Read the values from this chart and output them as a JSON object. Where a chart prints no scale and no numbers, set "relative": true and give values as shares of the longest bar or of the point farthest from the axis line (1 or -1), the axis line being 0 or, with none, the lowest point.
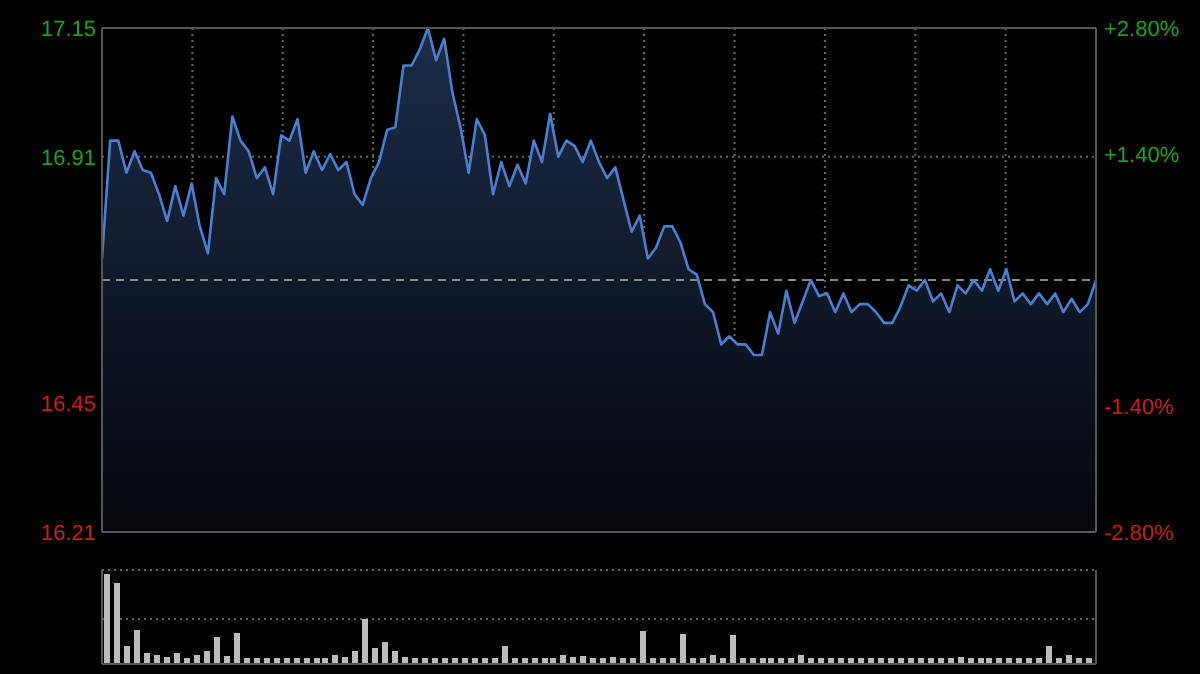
{
  "chart_data": [
    {
      "type": "area",
      "color": "#4a7fd0",
      "categories": [
        null,
        null,
        null,
        null,
        null,
        null,
        null,
        null,
        null,
        null,
        null,
        null,
        null,
        null,
        null,
        null,
        null,
        null,
        null,
        null,
        null,
        null,
        null,
        null,
        null,
        null,
        null,
        null,
        null,
        null,
        null,
        null,
        null,
        null,
        null,
        null,
        null,
        null,
        null,
        null,
        null,
        null,
        null,
        null,
        null,
        null,
        null,
        null,
        null,
        null,
        null,
        null,
        null,
        null,
        null,
        null,
        null,
        null,
        null,
        null,
        null,
        null,
        null,
        null,
        null,
        null,
        null,
        null,
        null,
        null,
        null,
        null,
        null,
        null,
        null,
        null,
        null,
        null,
        null,
        null,
        null,
        null,
        null,
        null,
        null,
        null,
        null,
        null,
        null,
        null,
        null,
        null,
        null,
        null,
        null,
        null,
        null,
        null,
        null,
        null,
        null,
        null,
        null,
        null,
        null,
        null,
        null,
        null,
        null,
        null,
        null,
        null,
        null,
        null,
        null,
        null,
        null,
        null,
        null,
        null,
        null,
        null,
        null
      ],
      "values": [
        16.72,
        16.94,
        16.94,
        16.88,
        16.92,
        16.885,
        16.88,
        16.84,
        16.79,
        16.855,
        16.8,
        16.86,
        16.78,
        16.73,
        16.87,
        16.84,
        16.985,
        16.94,
        16.92,
        16.87,
        16.89,
        16.84,
        16.95,
        16.94,
        16.98,
        16.88,
        16.92,
        16.885,
        16.915,
        16.885,
        16.9,
        16.84,
        16.82,
        16.87,
        16.9,
        16.96,
        16.965,
        17.08,
        17.08,
        17.11,
        17.15,
        17.09,
        17.13,
        17.03,
        16.965,
        16.88,
        16.98,
        16.95,
        16.84,
        16.9,
        16.855,
        16.895,
        16.86,
        16.94,
        16.9,
        16.99,
        16.91,
        16.94,
        16.93,
        16.9,
        16.94,
        16.9,
        16.87,
        16.89,
        16.83,
        16.77,
        16.8,
        16.72,
        16.74,
        16.78,
        16.78,
        16.75,
        16.7,
        16.69,
        16.635,
        16.62,
        16.56,
        16.575,
        16.56,
        16.56,
        16.54,
        16.54,
        16.62,
        16.58,
        16.66,
        16.6,
        16.64,
        16.68,
        16.65,
        16.655,
        16.62,
        16.655,
        16.62,
        16.635,
        16.635,
        16.62,
        16.6,
        16.6,
        16.63,
        16.67,
        16.66,
        16.68,
        16.64,
        16.655,
        16.62,
        16.67,
        16.655,
        16.68,
        16.66,
        16.7,
        16.66,
        16.7,
        16.64,
        16.655,
        16.635,
        16.655,
        16.635,
        16.655,
        16.62,
        16.645,
        16.62,
        16.635,
        16.68
      ],
      "ylim": [
        16.21,
        17.15
      ],
      "yticks": [
        16.21,
        16.45,
        16.91,
        17.15
      ],
      "y2lim": [
        -2.8,
        2.8
      ],
      "y2ticks": [
        {
          "value": -2.8,
          "label": "-2.80%"
        },
        {
          "value": -1.4,
          "label": "-1.40%"
        },
        {
          "value": 1.4,
          "label": "+1.40%"
        },
        {
          "value": 2.8,
          "label": "+2.80%"
        }
      ],
      "ref_lines": [
        {
          "axis": "y",
          "value": 16.68,
          "color": "#888888",
          "line_style": "dashed"
        }
      ],
      "grid": true
    },
    {
      "type": "bar",
      "color": "#bbbbbb",
      "relative": true,
      "ref_lines": [
        {
          "axis": "y",
          "value": 0.5,
          "color": "#666666",
          "line_style": "dotted"
        }
      ],
      "categories": [
        null,
        null,
        null,
        null,
        null,
        null,
        null,
        null,
        null,
        null,
        null,
        null,
        null,
        null,
        null,
        null,
        null,
        null,
        null,
        null,
        null,
        null,
        null,
        null,
        null,
        null,
        null,
        null,
        null,
        null,
        null,
        null,
        null,
        null,
        null,
        null,
        null,
        null,
        null,
        null,
        null,
        null,
        null,
        null,
        null,
        null,
        null,
        null,
        null,
        null,
        null,
        null,
        null,
        null,
        null,
        null,
        null,
        null,
        null,
        null,
        null,
        null,
        null,
        null,
        null,
        null,
        null,
        null,
        null,
        null,
        null,
        null,
        null,
        null,
        null,
        null,
        null,
        null,
        null,
        null,
        null,
        null,
        null,
        null,
        null,
        null,
        null,
        null,
        null,
        null,
        null,
        null,
        null,
        null,
        null,
        null,
        null,
        null,
        null,
        null
      ],
      "values": [
        1.0,
        0.9,
        0.2,
        0.38,
        0.12,
        0.1,
        0.08,
        0.12,
        0.07,
        0.1,
        0.14,
        0.3,
        0.09,
        0.35,
        0.07,
        0.07,
        0.07,
        0.07,
        0.07,
        0.07,
        0.07,
        0.07,
        0.07,
        0.1,
        0.08,
        0.14,
        0.5,
        0.18,
        0.25,
        0.15,
        0.08,
        0.07,
        0.07,
        0.07,
        0.07,
        0.07,
        0.07,
        0.07,
        0.07,
        0.07,
        0.2,
        0.07,
        0.07,
        0.07,
        0.07,
        0.07,
        0.1,
        0.08,
        0.09,
        0.07,
        0.07,
        0.08,
        0.07,
        0.07,
        0.37,
        0.07,
        0.07,
        0.07,
        0.33,
        0.07,
        0.07,
        0.1,
        0.07,
        0.32,
        0.07,
        0.07,
        0.07,
        0.07,
        0.07,
        0.07,
        0.1,
        0.07,
        0.07,
        0.07,
        0.07,
        0.07,
        0.07,
        0.07,
        0.07,
        0.07,
        0.07,
        0.07,
        0.07,
        0.07,
        0.07,
        0.07,
        0.08,
        0.07,
        0.07,
        0.07,
        0.07,
        0.07,
        0.07,
        0.07,
        0.07,
        0.2,
        0.07,
        0.1,
        0.07,
        0.07
      ]
    }
  ]
}
